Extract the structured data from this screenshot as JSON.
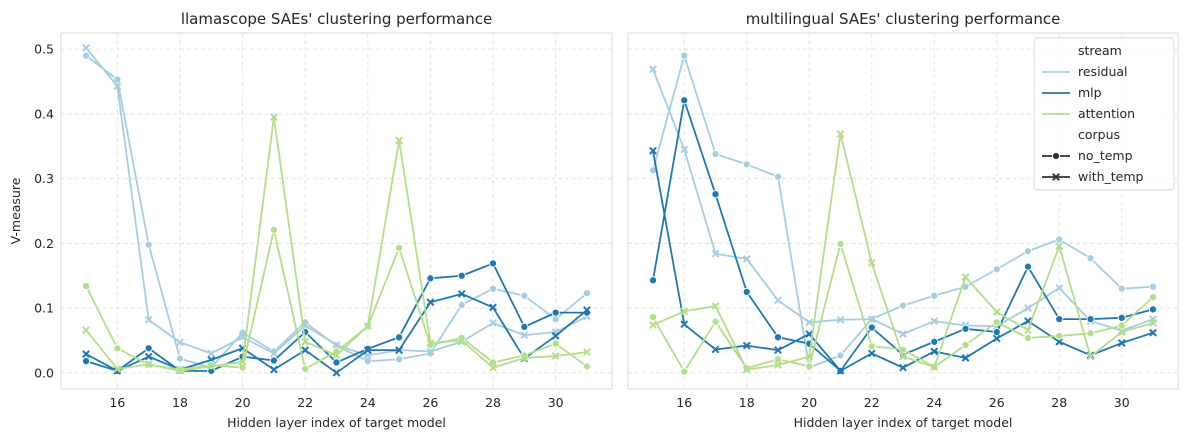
{
  "palette": {
    "residual": "#a6cee3",
    "mlp": "#1f78b4",
    "attention": "#b2df8a",
    "grid": "#e0e0e0",
    "axis_bg": "#ffffff",
    "legend_text": "#262626"
  },
  "chart_data": [
    {
      "type": "line",
      "title": "llamascope SAEs' clustering performance",
      "xlabel": "Hidden layer index of target model",
      "ylabel": "V-measure",
      "xlim": [
        14.2,
        31.8
      ],
      "ylim": [
        -0.025,
        0.525
      ],
      "xticks": [
        16,
        18,
        20,
        22,
        24,
        26,
        28,
        30
      ],
      "yticks": [
        0.0,
        0.1,
        0.2,
        0.3,
        0.4,
        0.5
      ],
      "ytick_labels": [
        "0.0",
        "0.1",
        "0.2",
        "0.3",
        "0.4",
        "0.5"
      ],
      "x": [
        15,
        16,
        17,
        18,
        19,
        20,
        21,
        22,
        23,
        24,
        25,
        26,
        27,
        28,
        29,
        30,
        31
      ],
      "grid": true,
      "series": [
        {
          "stream": "residual",
          "corpus": "no_temp",
          "values": [
            0.49,
            0.453,
            0.198,
            0.022,
            0.008,
            0.062,
            0.033,
            0.078,
            0.042,
            0.018,
            0.021,
            0.03,
            0.105,
            0.13,
            0.119,
            0.083,
            0.123
          ]
        },
        {
          "stream": "residual",
          "corpus": "with_temp",
          "values": [
            0.502,
            0.443,
            0.082,
            0.047,
            0.03,
            0.055,
            0.03,
            0.073,
            0.043,
            0.027,
            0.035,
            0.033,
            0.048,
            0.077,
            0.058,
            0.063,
            0.087
          ]
        },
        {
          "stream": "mlp",
          "corpus": "no_temp",
          "values": [
            0.018,
            0.003,
            0.038,
            0.003,
            0.003,
            0.025,
            0.019,
            0.063,
            0.016,
            0.037,
            0.055,
            0.146,
            0.15,
            0.169,
            0.071,
            0.093,
            0.093
          ]
        },
        {
          "stream": "mlp",
          "corpus": "with_temp",
          "values": [
            0.029,
            0.003,
            0.025,
            0.005,
            0.02,
            0.038,
            0.005,
            0.035,
            0.0,
            0.035,
            0.035,
            0.109,
            0.122,
            0.101,
            0.022,
            0.057,
            0.097
          ]
        },
        {
          "stream": "attention",
          "corpus": "no_temp",
          "values": [
            0.134,
            0.038,
            0.013,
            0.005,
            0.012,
            0.008,
            0.221,
            0.006,
            0.033,
            0.072,
            0.193,
            0.043,
            0.054,
            0.016,
            0.027,
            0.045,
            0.01
          ]
        },
        {
          "stream": "attention",
          "corpus": "with_temp",
          "values": [
            0.066,
            0.006,
            0.013,
            0.003,
            0.01,
            0.017,
            0.395,
            0.048,
            0.027,
            0.072,
            0.359,
            0.046,
            0.05,
            0.008,
            0.023,
            0.026,
            0.032
          ]
        }
      ]
    },
    {
      "type": "line",
      "title": "multilingual SAEs' clustering performance",
      "xlabel": "Hidden layer index of target model",
      "ylabel": "",
      "xlim": [
        14.2,
        31.8
      ],
      "ylim": [
        -0.025,
        0.525
      ],
      "xticks": [
        16,
        18,
        20,
        22,
        24,
        26,
        28,
        30
      ],
      "yticks": [
        0.0,
        0.1,
        0.2,
        0.3,
        0.4,
        0.5
      ],
      "x": [
        15,
        16,
        17,
        18,
        19,
        20,
        21,
        22,
        23,
        24,
        25,
        26,
        27,
        28,
        29,
        30,
        31
      ],
      "grid": true,
      "legend": {
        "placement": "top-right",
        "hue_title": "stream",
        "hue_entries": [
          "residual",
          "mlp",
          "attention"
        ],
        "style_title": "corpus",
        "style_entries": [
          "no_temp",
          "with_temp"
        ]
      },
      "series": [
        {
          "stream": "residual",
          "corpus": "no_temp",
          "values": [
            0.313,
            0.49,
            0.338,
            0.322,
            0.303,
            0.008,
            0.027,
            0.083,
            0.104,
            0.119,
            0.133,
            0.16,
            0.188,
            0.206,
            0.177,
            0.13,
            0.133
          ]
        },
        {
          "stream": "residual",
          "corpus": "with_temp",
          "values": [
            0.469,
            0.345,
            0.184,
            0.176,
            0.112,
            0.078,
            0.082,
            0.083,
            0.06,
            0.08,
            0.073,
            0.072,
            0.1,
            0.131,
            0.08,
            0.065,
            0.083
          ]
        },
        {
          "stream": "mlp",
          "corpus": "no_temp",
          "values": [
            0.143,
            0.421,
            0.276,
            0.125,
            0.055,
            0.045,
            0.003,
            0.07,
            0.028,
            0.048,
            0.068,
            0.063,
            0.164,
            0.083,
            0.083,
            0.085,
            0.098
          ]
        },
        {
          "stream": "mlp",
          "corpus": "with_temp",
          "values": [
            0.343,
            0.075,
            0.036,
            0.042,
            0.035,
            0.06,
            0.003,
            0.03,
            0.008,
            0.033,
            0.023,
            0.053,
            0.08,
            0.048,
            0.027,
            0.046,
            0.062
          ]
        },
        {
          "stream": "attention",
          "corpus": "no_temp",
          "values": [
            0.086,
            0.002,
            0.079,
            0.007,
            0.021,
            0.01,
            0.199,
            0.041,
            0.036,
            0.009,
            0.043,
            0.078,
            0.054,
            0.057,
            0.061,
            0.073,
            0.117
          ]
        },
        {
          "stream": "attention",
          "corpus": "with_temp",
          "values": [
            0.074,
            0.095,
            0.103,
            0.005,
            0.012,
            0.025,
            0.369,
            0.17,
            0.025,
            0.009,
            0.148,
            0.094,
            0.066,
            0.196,
            0.025,
            0.063,
            0.077
          ]
        }
      ]
    }
  ]
}
